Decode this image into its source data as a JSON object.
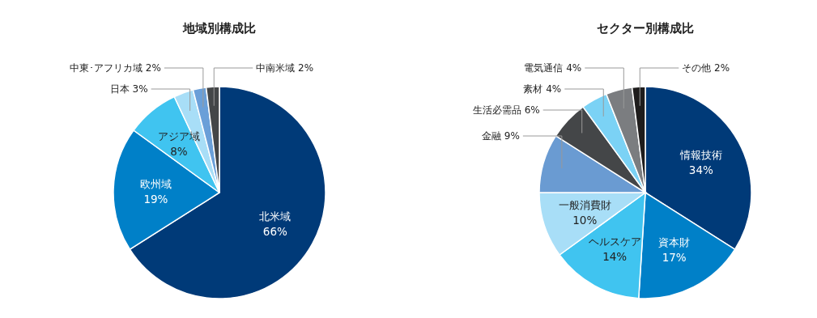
{
  "chart_data": [
    {
      "type": "pie",
      "title": "地域別構成比",
      "categories": [
        "北米域",
        "欧州域",
        "アジア域",
        "日本",
        "中東･アフリカ域",
        "中南米域"
      ],
      "values": [
        66,
        19,
        8,
        3,
        2,
        2
      ],
      "value_labels": [
        "66%",
        "19%",
        "8%",
        "3%",
        "2%",
        "2%"
      ],
      "colors": [
        "#003a78",
        "#0080c8",
        "#40c4f0",
        "#a8def7",
        "#6a9fd8",
        "#444648"
      ]
    },
    {
      "type": "pie",
      "title": "セクター別構成比",
      "categories": [
        "情報技術",
        "資本財",
        "ヘルスケア",
        "一般消費財",
        "金融",
        "生活必需品",
        "素材",
        "電気通信",
        "その他"
      ],
      "values": [
        34,
        17,
        14,
        10,
        9,
        6,
        4,
        4,
        2
      ],
      "value_labels": [
        "34%",
        "17%",
        "14%",
        "10%",
        "9%",
        "6%",
        "4%",
        "4%",
        "2%"
      ],
      "colors": [
        "#003a78",
        "#0080c8",
        "#40c4f0",
        "#a8def7",
        "#6a9bd2",
        "#444648",
        "#7bd2f5",
        "#7b7d80",
        "#1e1c1c"
      ]
    }
  ]
}
